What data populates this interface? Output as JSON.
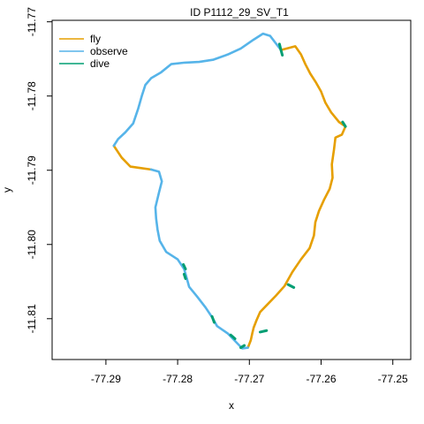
{
  "chart_data": {
    "type": "line",
    "title": "ID P1112_29_SV_T1",
    "xlabel": "x",
    "ylabel": "y",
    "xlim": [
      -77.2975,
      -77.2475
    ],
    "ylim": [
      -11.8155,
      -11.7698
    ],
    "x_ticks": [
      -77.29,
      -77.28,
      -77.27,
      -77.26,
      -77.25
    ],
    "x_tick_labels": [
      "-77.29",
      "-77.28",
      "-77.27",
      "-77.26",
      "-77.25"
    ],
    "y_ticks": [
      -11.77,
      -11.78,
      -11.79,
      -11.8,
      -11.81
    ],
    "y_tick_labels": [
      "-11.77",
      "-11.78",
      "-11.79",
      "-11.80",
      "-11.81"
    ],
    "grid": false,
    "legend": {
      "position": "top-left",
      "entries": [
        {
          "label": "fly",
          "color": "#E69F00"
        },
        {
          "label": "observe",
          "color": "#56B4E9"
        },
        {
          "label": "dive",
          "color": "#009E73"
        }
      ]
    },
    "series": [
      {
        "name": "fly",
        "color": "#E69F00",
        "segments": [
          [
            [
              -77.2889,
              -11.7867
            ],
            [
              -77.2878,
              -11.7883
            ],
            [
              -77.2866,
              -11.7895
            ],
            [
              -77.2852,
              -11.7897
            ],
            [
              -77.2837,
              -11.7899
            ]
          ],
          [
            [
              -77.2656,
              -11.7738
            ],
            [
              -77.2636,
              -11.7733
            ],
            [
              -77.2628,
              -11.7744
            ],
            [
              -77.2622,
              -11.7757
            ],
            [
              -77.2615,
              -11.777
            ],
            [
              -77.2607,
              -11.7782
            ],
            [
              -77.26,
              -11.7794
            ],
            [
              -77.2594,
              -11.7809
            ],
            [
              -77.2586,
              -11.7822
            ],
            [
              -77.2575,
              -11.7835
            ],
            [
              -77.2566,
              -11.7841
            ],
            [
              -77.2571,
              -11.7852
            ],
            [
              -77.258,
              -11.7856
            ],
            [
              -77.2582,
              -11.7872
            ],
            [
              -77.2585,
              -11.7892
            ],
            [
              -77.2584,
              -11.791
            ],
            [
              -77.2588,
              -11.7925
            ],
            [
              -77.2596,
              -11.794
            ],
            [
              -77.2603,
              -11.7955
            ],
            [
              -77.2608,
              -11.797
            ],
            [
              -77.261,
              -11.7988
            ],
            [
              -77.2616,
              -11.8005
            ],
            [
              -77.2628,
              -11.802
            ],
            [
              -77.264,
              -11.8037
            ],
            [
              -77.2651,
              -11.8056
            ],
            [
              -77.2663,
              -11.8069
            ],
            [
              -77.2675,
              -11.8081
            ],
            [
              -77.2685,
              -11.8091
            ],
            [
              -77.269,
              -11.8102
            ],
            [
              -77.2694,
              -11.8112
            ],
            [
              -77.2696,
              -11.812
            ],
            [
              -77.2698,
              -11.8129
            ],
            [
              -77.2702,
              -11.8139
            ]
          ]
        ]
      },
      {
        "name": "observe",
        "color": "#56B4E9",
        "segments": [
          [
            [
              -77.2889,
              -11.7867
            ],
            [
              -77.2883,
              -11.7858
            ],
            [
              -77.2873,
              -11.7849
            ],
            [
              -77.2862,
              -11.7837
            ],
            [
              -77.2855,
              -11.7817
            ],
            [
              -77.285,
              -11.78
            ],
            [
              -77.2845,
              -11.7785
            ],
            [
              -77.2837,
              -11.7776
            ],
            [
              -77.2823,
              -11.7768
            ],
            [
              -77.2809,
              -11.7757
            ],
            [
              -77.279,
              -11.7755
            ],
            [
              -77.277,
              -11.7754
            ],
            [
              -77.275,
              -11.7751
            ],
            [
              -77.273,
              -11.7744
            ],
            [
              -77.2712,
              -11.7736
            ],
            [
              -77.2694,
              -11.7724
            ],
            [
              -77.2681,
              -11.7716
            ],
            [
              -77.2671,
              -11.7719
            ],
            [
              -77.2656,
              -11.7738
            ]
          ],
          [
            [
              -77.2837,
              -11.7899
            ],
            [
              -77.2826,
              -11.7902
            ],
            [
              -77.2822,
              -11.7915
            ],
            [
              -77.2826,
              -11.793
            ],
            [
              -77.2831,
              -11.795
            ],
            [
              -77.283,
              -11.7965
            ],
            [
              -77.2828,
              -11.798
            ],
            [
              -77.2825,
              -11.7995
            ],
            [
              -77.2816,
              -11.801
            ],
            [
              -77.28,
              -11.802
            ],
            [
              -77.2791,
              -11.8033
            ],
            [
              -77.2788,
              -11.8043
            ],
            [
              -77.2784,
              -11.8057
            ],
            [
              -77.2773,
              -11.807
            ],
            [
              -77.2761,
              -11.8085
            ],
            [
              -77.2752,
              -11.8098
            ],
            [
              -77.2745,
              -11.811
            ],
            [
              -77.273,
              -11.812
            ],
            [
              -77.272,
              -11.813
            ],
            [
              -77.271,
              -11.814
            ],
            [
              -77.2702,
              -11.8139
            ]
          ]
        ]
      },
      {
        "name": "dive",
        "color": "#009E73",
        "segments": [
          [
            [
              -77.2658,
              -11.773
            ],
            [
              -77.2656,
              -11.7738
            ],
            [
              -77.2654,
              -11.7745
            ]
          ],
          [
            [
              -77.257,
              -11.7835
            ],
            [
              -77.2566,
              -11.7841
            ]
          ],
          [
            [
              -77.2646,
              -11.8054
            ],
            [
              -77.2638,
              -11.8058
            ]
          ],
          [
            [
              -77.2792,
              -11.8027
            ],
            [
              -77.2789,
              -11.8033
            ]
          ],
          [
            [
              -77.2791,
              -11.804
            ],
            [
              -77.2789,
              -11.8046
            ]
          ],
          [
            [
              -77.2752,
              -11.8097
            ],
            [
              -77.2749,
              -11.8105
            ]
          ],
          [
            [
              -77.2726,
              -11.8122
            ],
            [
              -77.272,
              -11.8127
            ]
          ],
          [
            [
              -77.2712,
              -11.8139
            ],
            [
              -77.2707,
              -11.8136
            ]
          ],
          [
            [
              -77.2685,
              -11.8118
            ],
            [
              -77.2676,
              -11.8116
            ]
          ]
        ]
      }
    ]
  }
}
